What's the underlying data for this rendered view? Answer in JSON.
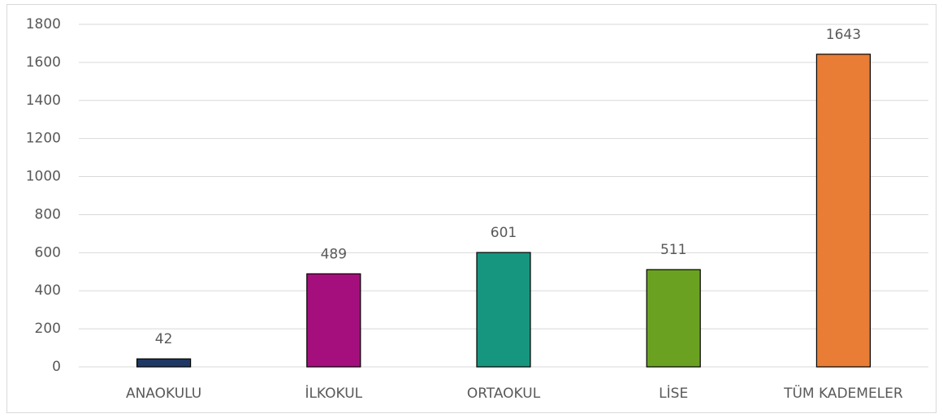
{
  "chart_data": {
    "type": "bar",
    "categories": [
      "ANAOKULU",
      "İLKOKUL",
      "ORTAOKUL",
      "LİSE",
      "TÜM KADEMELER"
    ],
    "values": [
      42,
      489,
      601,
      511,
      1643
    ],
    "colors": [
      "#1f3864",
      "#a50f7d",
      "#16967f",
      "#6aa121",
      "#e97d35"
    ],
    "ylim": [
      0,
      1800
    ],
    "yticks": [
      0,
      200,
      400,
      600,
      800,
      1000,
      1200,
      1400,
      1600,
      1800
    ],
    "grid": true
  }
}
